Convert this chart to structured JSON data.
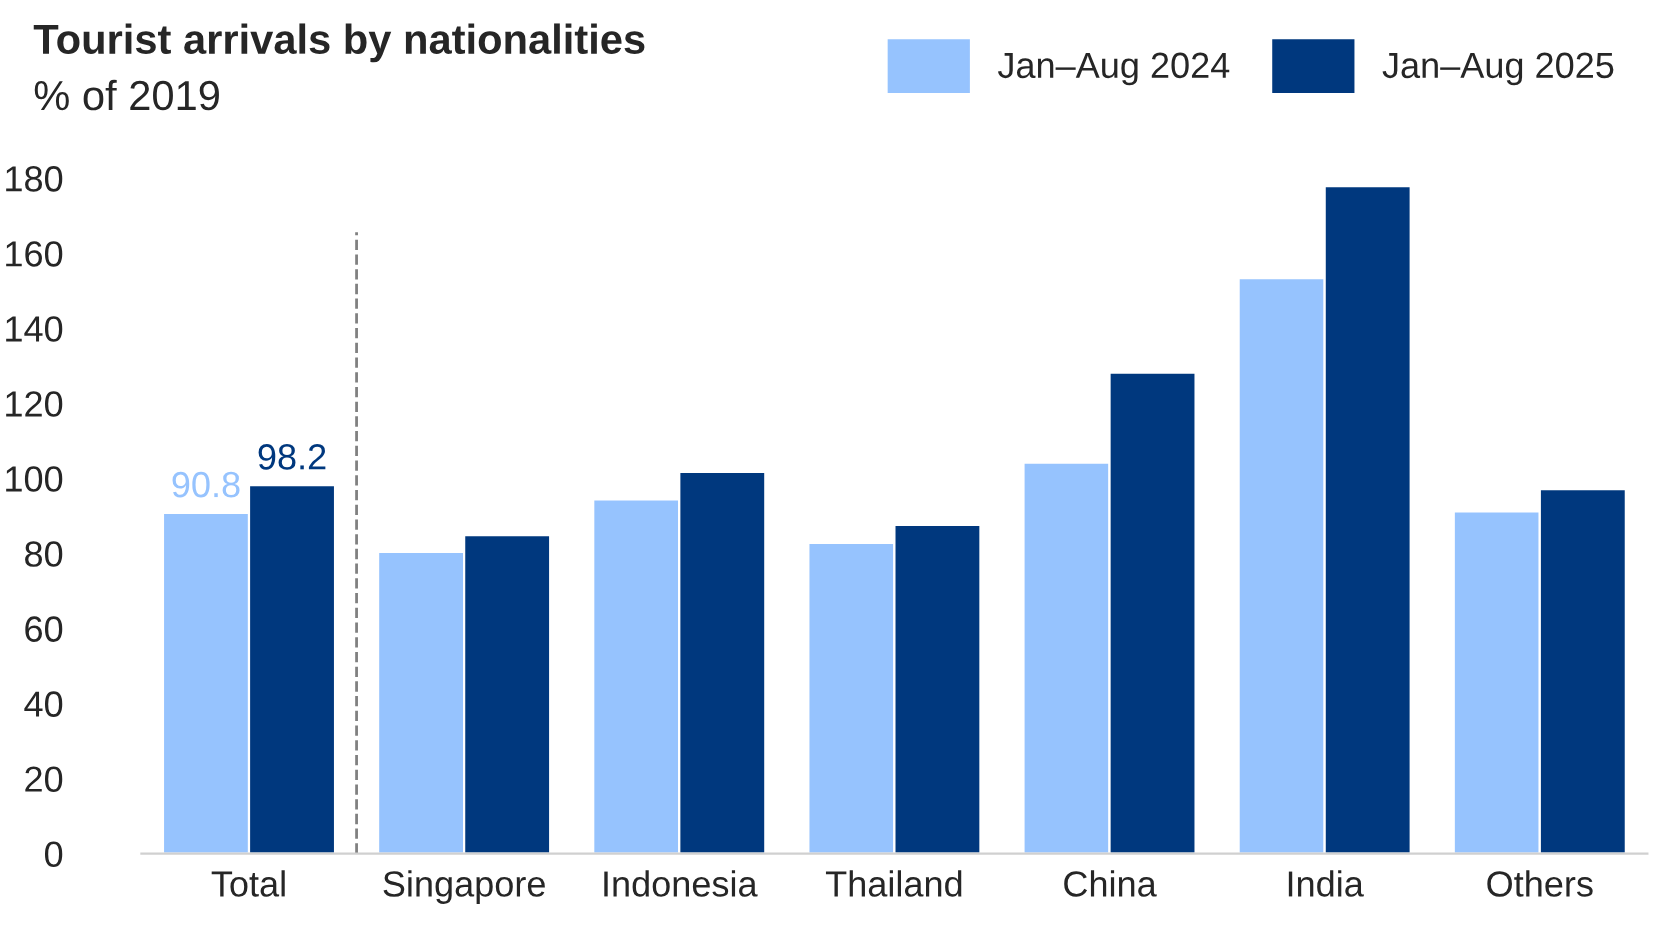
{
  "chart_data": {
    "type": "bar",
    "title": "Tourist arrivals by nationalities",
    "subtitle": "% of 2019",
    "categories": [
      "Total",
      "Singapore",
      "Indonesia",
      "Thailand",
      "China",
      "India",
      "Others"
    ],
    "series": [
      {
        "name": "Jan–Aug 2024",
        "color": "#96c3fe",
        "values": [
          90.8,
          80.4,
          94.4,
          82.8,
          104.2,
          153.4,
          91.2
        ],
        "value_labels": [
          "90.8",
          null,
          null,
          null,
          null,
          null,
          null
        ]
      },
      {
        "name": "Jan–Aug 2025",
        "color": "#00387e",
        "values": [
          98.2,
          84.9,
          101.7,
          87.6,
          128.2,
          177.9,
          97.1
        ],
        "value_labels": [
          "98.2",
          null,
          null,
          null,
          null,
          null,
          null
        ]
      }
    ],
    "ylim": [
      0,
      180
    ],
    "yticks": [
      0,
      20,
      40,
      60,
      80,
      100,
      120,
      140,
      160,
      180
    ],
    "grid": false,
    "legend": "top right"
  }
}
